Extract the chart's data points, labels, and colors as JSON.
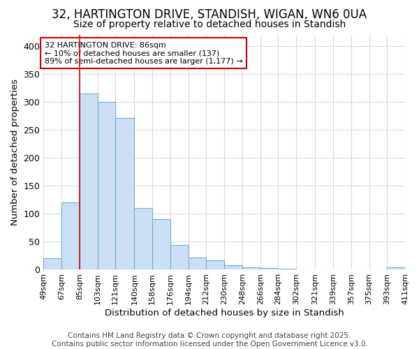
{
  "title1": "32, HARTINGTON DRIVE, STANDISH, WIGAN, WN6 0UA",
  "title2": "Size of property relative to detached houses in Standish",
  "xlabel": "Distribution of detached houses by size in Standish",
  "ylabel": "Number of detached properties",
  "bin_edges": [
    49,
    67,
    85,
    103,
    121,
    140,
    158,
    176,
    194,
    212,
    230,
    248,
    266,
    284,
    302,
    321,
    339,
    357,
    375,
    393,
    411
  ],
  "bar_heights": [
    20,
    120,
    315,
    300,
    272,
    110,
    90,
    44,
    22,
    17,
    8,
    4,
    3,
    2,
    1,
    1,
    1,
    0,
    0,
    4
  ],
  "bar_color": "#cce0f5",
  "bar_edge_color": "#6baed6",
  "vline_x": 85,
  "vline_color": "#cc0000",
  "annotation_title": "32 HARTINGTON DRIVE: 86sqm",
  "annotation_line2": "← 10% of detached houses are smaller (137)",
  "annotation_line3": "89% of semi-detached houses are larger (1,177) →",
  "annotation_box_color": "#cc0000",
  "annotation_bg_color": "#ffffff",
  "footer1": "Contains HM Land Registry data © Crown copyright and database right 2025.",
  "footer2": "Contains public sector information licensed under the Open Government Licence v3.0.",
  "ylim": [
    0,
    420
  ],
  "background_color": "#ffffff",
  "grid_color": "#d0dce8",
  "title_fontsize": 12,
  "subtitle_fontsize": 10,
  "tick_label_fontsize": 8,
  "axis_label_fontsize": 9.5,
  "footer_fontsize": 7.5,
  "yticks": [
    0,
    50,
    100,
    150,
    200,
    250,
    300,
    350,
    400
  ]
}
